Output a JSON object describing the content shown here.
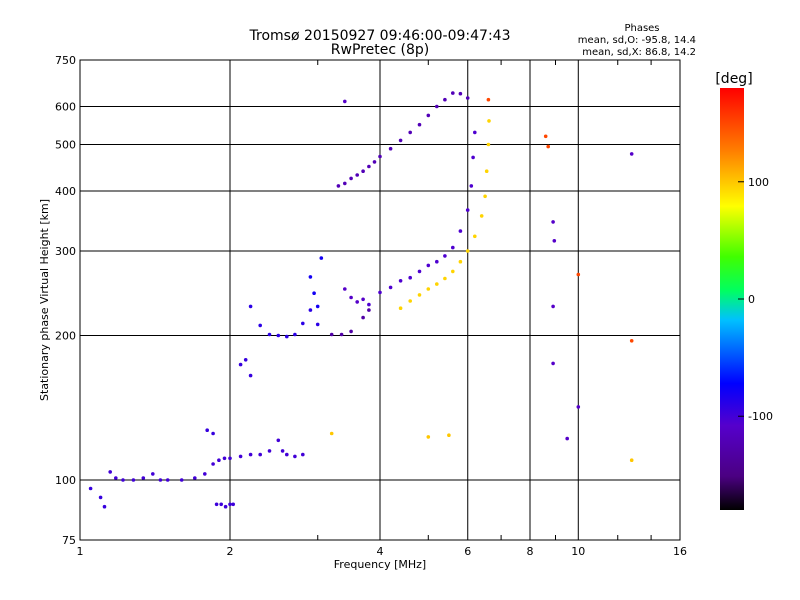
{
  "chart_data": {
    "type": "scatter",
    "title": "Tromsø 20150927 09:46:00-09:47:43",
    "subtitle": "RwPretec (8p)",
    "xlabel": "Frequency [MHz]",
    "ylabel": "Stationary phase Virtual Height [km]",
    "x_scale": "log",
    "y_scale": "log",
    "xlim": [
      1,
      16
    ],
    "ylim": [
      75,
      750
    ],
    "x_ticks": [
      1,
      2,
      4,
      6,
      8,
      10,
      16
    ],
    "x_tick_labels": [
      "1",
      "2",
      "4",
      "6",
      "8",
      "10",
      "16"
    ],
    "y_ticks": [
      75,
      100,
      200,
      300,
      400,
      500,
      600,
      750
    ],
    "y_tick_labels": [
      "75",
      "100",
      "200",
      "300",
      "400",
      "500",
      "600",
      "750"
    ],
    "grid": true,
    "phase_info": {
      "title": "Phases",
      "line_o": "mean, sd,O: -95.8, 14.4",
      "line_x": "mean, sd,X:  86.8, 14.2"
    },
    "colorbar": {
      "label": "[deg]",
      "range": [
        -180,
        180
      ],
      "ticks": [
        100,
        0,
        -100
      ],
      "tick_labels": [
        "100",
        "0",
        "-100"
      ]
    },
    "series": [
      {
        "name": "O",
        "traces": [
          {
            "phase": -100,
            "points": [
              [
                1.15,
                104
              ],
              [
                1.18,
                101
              ],
              [
                1.22,
                100
              ],
              [
                1.28,
                100
              ],
              [
                1.34,
                101
              ],
              [
                1.4,
                103
              ],
              [
                1.45,
                100
              ],
              [
                1.5,
                100
              ],
              [
                1.6,
                100
              ],
              [
                1.7,
                101
              ],
              [
                1.78,
                103
              ],
              [
                1.85,
                108
              ],
              [
                1.9,
                110
              ],
              [
                1.95,
                111
              ],
              [
                2.0,
                111
              ],
              [
                2.1,
                112
              ],
              [
                2.2,
                113
              ],
              [
                2.3,
                113
              ],
              [
                2.4,
                115
              ],
              [
                2.5,
                121
              ],
              [
                2.55,
                115
              ],
              [
                2.6,
                113
              ],
              [
                2.7,
                112
              ],
              [
                2.8,
                113
              ]
            ]
          },
          {
            "phase": -95,
            "points": [
              [
                1.05,
                96
              ],
              [
                1.1,
                92
              ],
              [
                1.12,
                88
              ]
            ]
          },
          {
            "phase": -98,
            "points": [
              [
                1.88,
                89
              ],
              [
                1.92,
                89
              ],
              [
                1.96,
                88
              ],
              [
                2.0,
                89
              ],
              [
                2.03,
                89
              ]
            ]
          },
          {
            "phase": -95,
            "points": [
              [
                1.8,
                127
              ],
              [
                1.85,
                125
              ],
              [
                2.1,
                174
              ],
              [
                2.15,
                178
              ],
              [
                2.2,
                165
              ]
            ]
          },
          {
            "phase": -90,
            "points": [
              [
                2.2,
                230
              ],
              [
                2.3,
                210
              ],
              [
                2.4,
                201
              ],
              [
                2.5,
                200
              ],
              [
                2.6,
                199
              ],
              [
                2.7,
                201
              ],
              [
                2.8,
                212
              ],
              [
                2.9,
                226
              ],
              [
                3.0,
                211
              ]
            ]
          },
          {
            "phase": -80,
            "points": [
              [
                2.9,
                265
              ],
              [
                2.95,
                245
              ],
              [
                3.0,
                230
              ],
              [
                3.05,
                290
              ]
            ]
          },
          {
            "phase": -130,
            "points": [
              [
                3.2,
                201
              ],
              [
                3.35,
                201
              ],
              [
                3.5,
                204
              ],
              [
                3.7,
                218
              ],
              [
                3.8,
                226
              ]
            ]
          },
          {
            "phase": -110,
            "points": [
              [
                3.4,
                250
              ],
              [
                3.5,
                240
              ],
              [
                3.6,
                235
              ],
              [
                3.7,
                238
              ]
            ]
          },
          {
            "phase": -105,
            "points": [
              [
                3.8,
                232
              ],
              [
                4.0,
                246
              ],
              [
                4.2,
                252
              ],
              [
                4.4,
                260
              ],
              [
                4.6,
                264
              ],
              [
                4.8,
                272
              ],
              [
                5.0,
                280
              ],
              [
                5.2,
                285
              ],
              [
                5.4,
                293
              ],
              [
                5.6,
                305
              ],
              [
                5.8,
                330
              ],
              [
                6.0,
                365
              ],
              [
                6.1,
                410
              ],
              [
                6.15,
                470
              ],
              [
                6.2,
                530
              ]
            ]
          },
          {
            "phase": -120,
            "points": [
              [
                3.3,
                410
              ],
              [
                3.4,
                415
              ],
              [
                3.5,
                425
              ],
              [
                3.6,
                432
              ],
              [
                3.7,
                440
              ],
              [
                3.8,
                450
              ],
              [
                3.9,
                460
              ],
              [
                4.0,
                472
              ],
              [
                4.2,
                490
              ],
              [
                4.4,
                510
              ],
              [
                4.6,
                530
              ],
              [
                4.8,
                550
              ],
              [
                5.0,
                575
              ],
              [
                5.2,
                600
              ],
              [
                5.4,
                620
              ],
              [
                5.6,
                640
              ],
              [
                5.8,
                638
              ],
              [
                6.0,
                625
              ]
            ]
          },
          {
            "phase": -110,
            "points": [
              [
                3.4,
                615
              ],
              [
                8.9,
                345
              ],
              [
                8.95,
                315
              ],
              [
                8.9,
                175
              ],
              [
                8.9,
                230
              ],
              [
                9.5,
                122
              ],
              [
                10.0,
                142
              ],
              [
                12.8,
                478
              ]
            ]
          }
        ]
      },
      {
        "name": "X",
        "traces": [
          {
            "phase": 95,
            "points": [
              [
                4.4,
                228
              ],
              [
                4.6,
                236
              ],
              [
                4.8,
                243
              ],
              [
                5.0,
                250
              ],
              [
                5.2,
                256
              ],
              [
                5.4,
                263
              ],
              [
                5.6,
                272
              ],
              [
                5.8,
                285
              ],
              [
                6.0,
                300
              ],
              [
                6.2,
                322
              ],
              [
                6.4,
                355
              ],
              [
                6.5,
                390
              ],
              [
                6.55,
                440
              ],
              [
                6.6,
                500
              ],
              [
                6.62,
                560
              ]
            ]
          },
          {
            "phase": 100,
            "points": [
              [
                3.2,
                125
              ],
              [
                5.0,
                123
              ],
              [
                5.5,
                124
              ],
              [
                12.8,
                110
              ]
            ]
          },
          {
            "phase": 150,
            "points": [
              [
                6.6,
                620
              ],
              [
                8.6,
                520
              ],
              [
                8.7,
                495
              ],
              [
                10.0,
                268
              ],
              [
                12.8,
                195
              ]
            ]
          }
        ]
      }
    ]
  }
}
